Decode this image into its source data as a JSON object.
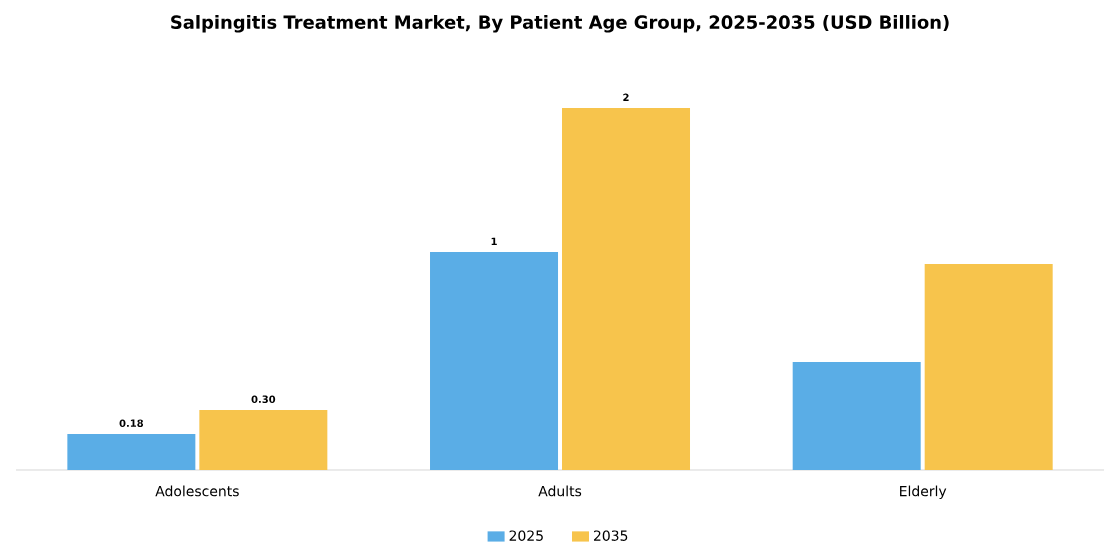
{
  "chart_data": {
    "type": "bar",
    "title": "Salpingitis Treatment Market, By Patient Age Group, 2025-2035 (USD Billion)",
    "categories": [
      "Adolescents",
      "Adults",
      "Elderly"
    ],
    "series": [
      {
        "name": "2025",
        "color": "#5aade6",
        "values": [
          0.18,
          1.09,
          0.54
        ],
        "value_labels": [
          "0.18",
          "1",
          null
        ]
      },
      {
        "name": "2035",
        "color": "#f7c44c",
        "values": [
          0.3,
          1.81,
          1.03
        ],
        "value_labels": [
          "0.30",
          "2",
          null
        ]
      }
    ],
    "legend": "bottom"
  }
}
